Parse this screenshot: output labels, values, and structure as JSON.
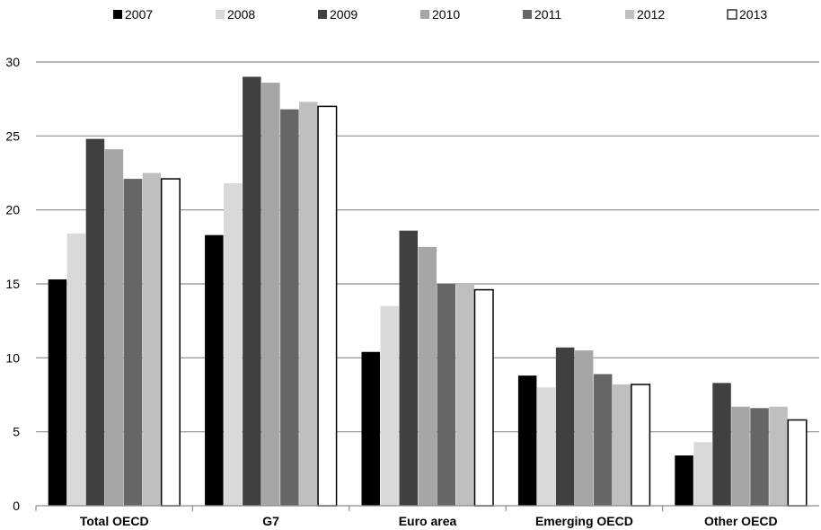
{
  "chart_data": {
    "type": "bar",
    "title": "",
    "xlabel": "",
    "ylabel": "",
    "ylim": [
      0,
      30
    ],
    "yticks": [
      0,
      5,
      10,
      15,
      20,
      25,
      30
    ],
    "grid": true,
    "legend_position": "top",
    "categories": [
      "Total OECD",
      "G7",
      "Euro area",
      "Emerging  OECD",
      "Other  OECD"
    ],
    "series": [
      {
        "name": "2007",
        "color": "#000000",
        "values": [
          15.3,
          18.3,
          10.4,
          8.8,
          3.4
        ]
      },
      {
        "name": "2008",
        "color": "#d9d9d9",
        "values": [
          18.4,
          21.8,
          13.5,
          8.0,
          4.3
        ]
      },
      {
        "name": "2009",
        "color": "#404040",
        "values": [
          24.8,
          29.0,
          18.6,
          10.7,
          8.3
        ]
      },
      {
        "name": "2010",
        "color": "#a6a6a6",
        "values": [
          24.1,
          28.6,
          17.5,
          10.5,
          6.7
        ]
      },
      {
        "name": "2011",
        "color": "#666666",
        "values": [
          22.1,
          26.8,
          15.0,
          8.9,
          6.6
        ]
      },
      {
        "name": "2012",
        "color": "#bfbfbf",
        "values": [
          22.5,
          27.3,
          15.0,
          8.2,
          6.7
        ]
      },
      {
        "name": "2013",
        "color": "#ffffff",
        "values": [
          22.1,
          27.0,
          14.6,
          8.2,
          5.8
        ]
      }
    ]
  }
}
